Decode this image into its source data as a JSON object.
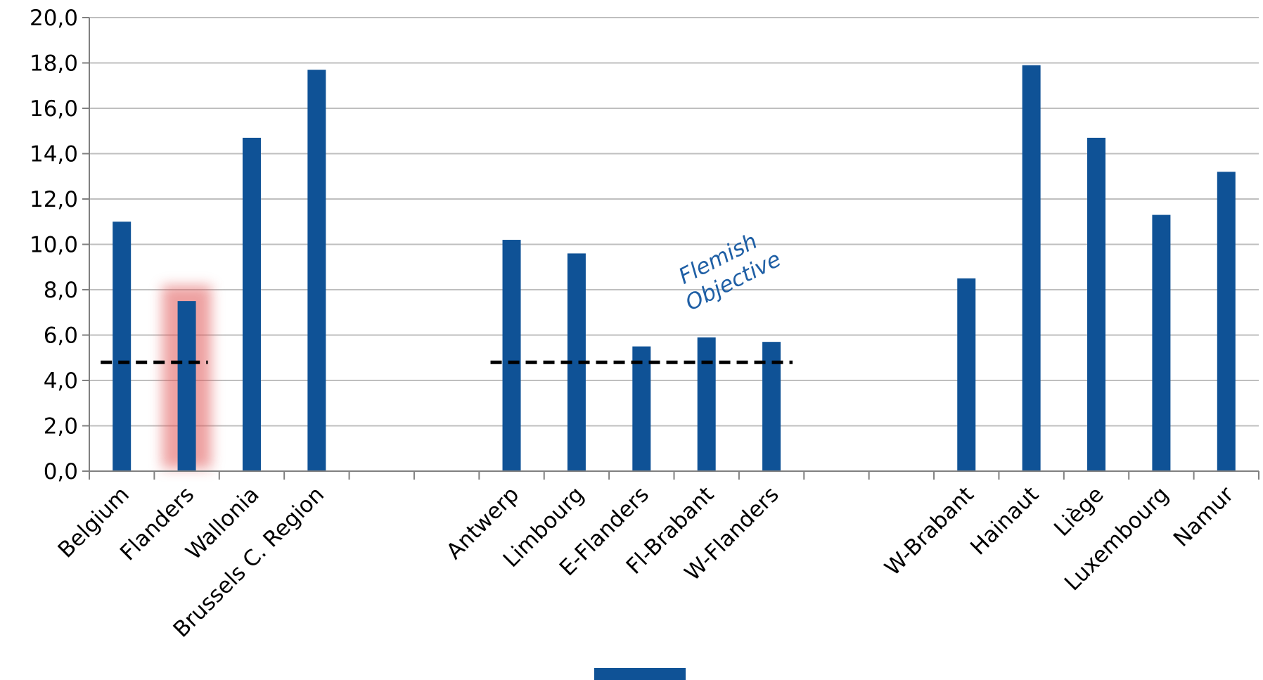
{
  "chart_data": {
    "type": "bar",
    "categories": [
      "Belgium",
      "Flanders",
      "Wallonia",
      "Brussels C. Region",
      "",
      "",
      "Antwerp",
      "Limbourg",
      "E-Flanders",
      "Fl-Brabant",
      "W-Flanders",
      "",
      "",
      "W-Brabant",
      "Hainaut",
      "Liège",
      "Luxembourg",
      "Namur"
    ],
    "values": [
      11.0,
      7.5,
      14.7,
      17.7,
      null,
      null,
      10.2,
      9.6,
      5.5,
      5.9,
      5.7,
      null,
      null,
      8.5,
      17.9,
      14.7,
      11.3,
      13.2
    ],
    "y_ticks": [
      "0,0",
      "2,0",
      "4,0",
      "6,0",
      "8,0",
      "10,0",
      "12,0",
      "14,0",
      "16,0",
      "18,0",
      "20,0"
    ],
    "ylim": [
      0,
      20
    ],
    "grid": true,
    "highlighted_category": "Flanders",
    "objective_lines": [
      {
        "value": 4.8,
        "from": "Belgium",
        "to": "Flanders"
      },
      {
        "value": 4.8,
        "from": "Antwerp",
        "to": "W-Flanders"
      }
    ],
    "annotation": {
      "line1": "Flemish",
      "line2": "Objective"
    },
    "colors": {
      "bar": "#0F5296",
      "grid": "#BFBFBF",
      "axis": "#808080",
      "objective_line": "#000000",
      "highlight": "#E05555",
      "annotation": "#1F5FA5"
    }
  }
}
